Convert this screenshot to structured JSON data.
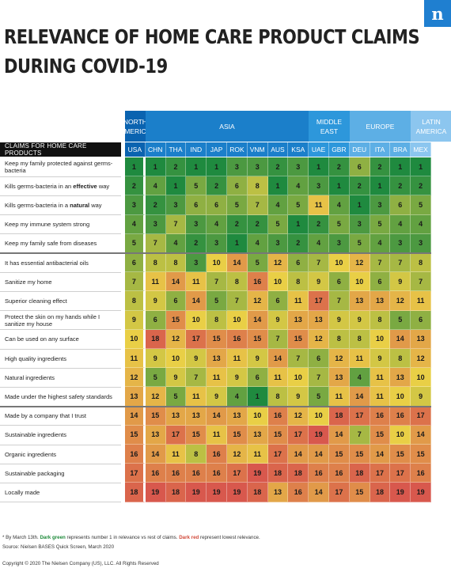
{
  "brand": {
    "logo_letter": "n"
  },
  "title": {
    "line1": "RELEVANCE OF HOME CARE PRODUCT CLAIMS",
    "line2": "DURING COVID-19"
  },
  "chart_data": {
    "type": "table",
    "row_header": "CLAIMS FOR HOME CARE PRODUCTS",
    "groups": [
      {
        "name": "NORTH AMERICA",
        "span": 1,
        "color": "#0a63b0"
      },
      {
        "name": "ASIA",
        "span": 8,
        "color": "#1b7fca"
      },
      {
        "name": "MIDDLE EAST",
        "span": 2,
        "color": "#2d97db"
      },
      {
        "name": "EUROPE",
        "span": 3,
        "color": "#5dafe5"
      },
      {
        "name": "LATIN AMERICA",
        "span": 2,
        "color": "#8cc6ef"
      }
    ],
    "columns": [
      "USA",
      "CHN",
      "THA",
      "IND",
      "JAP",
      "ROK",
      "VNM",
      "AUS",
      "KSA",
      "UAE",
      "GBR",
      "DEU",
      "ITA",
      "BRA",
      "MEX"
    ],
    "rows": [
      {
        "label": "Keep my family protected against germs-bacteria",
        "values": [
          1,
          1,
          2,
          1,
          1,
          3,
          3,
          2,
          3,
          1,
          2,
          6,
          2,
          1,
          1
        ]
      },
      {
        "label_parts": [
          "Kills germs-bacteria in an ",
          "effective",
          " way"
        ],
        "values": [
          2,
          4,
          1,
          5,
          2,
          6,
          8,
          1,
          4,
          3,
          1,
          2,
          1,
          2,
          2
        ]
      },
      {
        "label_parts": [
          "Kills germs-bacteria in a ",
          "natural",
          " way"
        ],
        "values": [
          3,
          2,
          3,
          6,
          6,
          5,
          7,
          4,
          5,
          11,
          4,
          1,
          3,
          6,
          5
        ]
      },
      {
        "label": "Keep my immune system strong",
        "values": [
          4,
          3,
          7,
          3,
          4,
          2,
          2,
          5,
          1,
          2,
          5,
          3,
          5,
          4,
          4
        ]
      },
      {
        "label": "Keep my family safe from diseases",
        "values": [
          5,
          7,
          4,
          2,
          3,
          1,
          4,
          3,
          2,
          4,
          3,
          5,
          4,
          3,
          3
        ]
      },
      {
        "label": "It has essential antibacterial oils",
        "values": [
          6,
          8,
          8,
          3,
          10,
          14,
          5,
          12,
          6,
          7,
          10,
          12,
          7,
          7,
          8
        ]
      },
      {
        "label": "Sanitize my home",
        "values": [
          7,
          11,
          14,
          11,
          7,
          8,
          16,
          10,
          8,
          9,
          6,
          10,
          6,
          9,
          7
        ]
      },
      {
        "label": "Superior cleaning effect",
        "values": [
          8,
          9,
          6,
          14,
          5,
          7,
          12,
          6,
          11,
          17,
          7,
          13,
          13,
          12,
          11
        ]
      },
      {
        "label": "Protect the skin on my hands while I sanitize my house",
        "values": [
          9,
          6,
          15,
          10,
          8,
          10,
          14,
          9,
          13,
          13,
          9,
          9,
          8,
          5,
          6
        ]
      },
      {
        "label": "Can be used on any surface",
        "values": [
          10,
          18,
          12,
          17,
          15,
          16,
          15,
          7,
          15,
          12,
          8,
          8,
          10,
          14,
          13
        ]
      },
      {
        "label": "High quality ingredients",
        "values": [
          11,
          9,
          10,
          9,
          13,
          11,
          9,
          14,
          7,
          6,
          12,
          11,
          9,
          8,
          12
        ]
      },
      {
        "label": "Natural ingredients",
        "values": [
          12,
          5,
          9,
          7,
          11,
          9,
          6,
          11,
          10,
          7,
          13,
          4,
          11,
          13,
          10
        ]
      },
      {
        "label": "Made under the highest safety standards",
        "values": [
          13,
          12,
          5,
          11,
          9,
          4,
          1,
          8,
          9,
          5,
          11,
          14,
          11,
          10,
          9
        ]
      },
      {
        "label": "Made by a company that I trust",
        "values": [
          14,
          15,
          13,
          13,
          14,
          13,
          10,
          16,
          12,
          10,
          18,
          17,
          16,
          16,
          17
        ]
      },
      {
        "label": "Sustainable ingredients",
        "values": [
          15,
          13,
          17,
          15,
          11,
          15,
          13,
          15,
          17,
          19,
          14,
          7,
          15,
          10,
          14
        ]
      },
      {
        "label": "Organic ingredients",
        "values": [
          16,
          14,
          11,
          8,
          16,
          12,
          11,
          17,
          14,
          14,
          15,
          15,
          14,
          15,
          15
        ]
      },
      {
        "label": "Sustainable packaging",
        "values": [
          17,
          16,
          16,
          16,
          16,
          17,
          19,
          18,
          18,
          16,
          16,
          18,
          17,
          17,
          16
        ]
      },
      {
        "label": "Locally made",
        "values": [
          18,
          19,
          18,
          19,
          19,
          19,
          18,
          13,
          16,
          14,
          17,
          15,
          18,
          19,
          19
        ]
      }
    ],
    "value_range": [
      1,
      19
    ],
    "color_scale": [
      "#1f8a3f",
      "#e9cf46",
      "#d8584d"
    ]
  },
  "footnotes": {
    "line1_a": "* By March 13th. ",
    "line1_green": "Dark green",
    "line1_b": " represents number 1 in relevance vs rest of claims. ",
    "line1_red": "Dark red",
    "line1_c": " represent lowest relevance.",
    "source": "Source: Nielsen BASES Quick Screen, March 2020",
    "copyright": "Copyright © 2020 The Nielsen Company (US), LLC. All Rights Reserved"
  }
}
